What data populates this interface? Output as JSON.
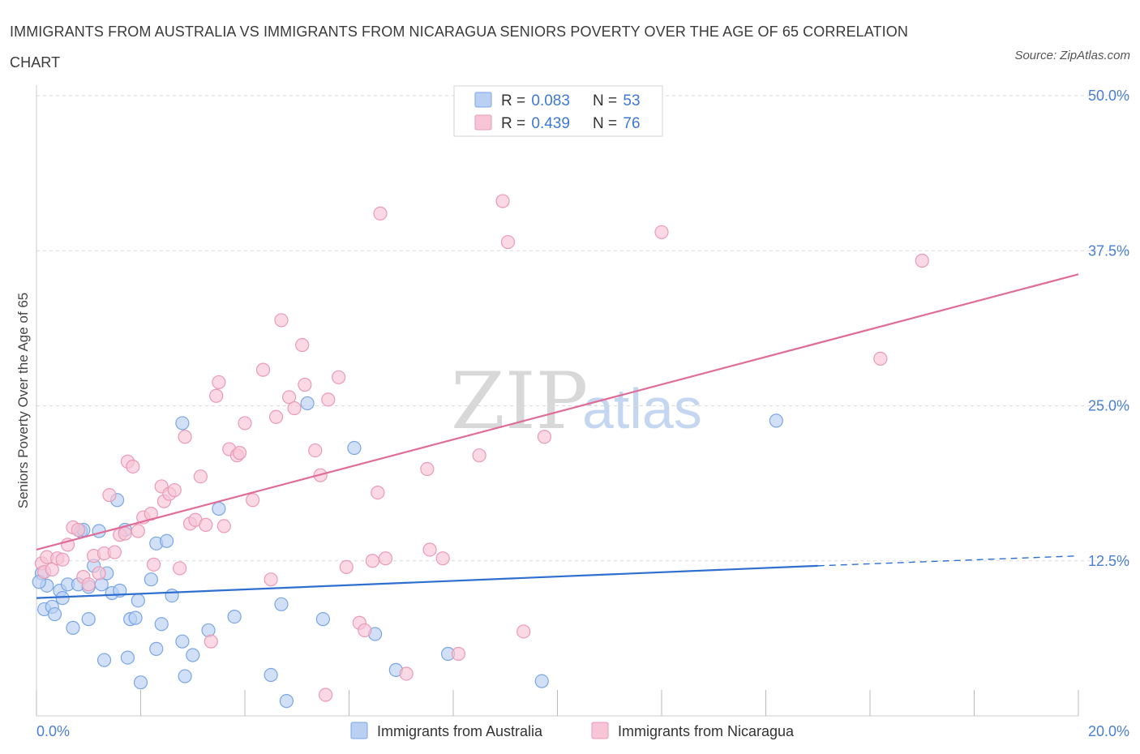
{
  "title": "IMMIGRANTS FROM AUSTRALIA VS IMMIGRANTS FROM NICARAGUA SENIORS POVERTY OVER THE AGE OF 65 CORRELATION CHART",
  "source": "Source: ZipAtlas.com",
  "watermark": {
    "zip": "ZIP",
    "atlas": "atlas"
  },
  "colors": {
    "blue_fill": "#b9d0f3",
    "blue_stroke": "#7aa6e6",
    "blue_line": "#2e6fd0",
    "pink_fill": "#f7c5d5",
    "pink_stroke": "#ea9ab5",
    "pink_line": "#e06c98",
    "tick_text": "#4a7fd4",
    "grid": "#d9d9d9"
  },
  "legend": {
    "rows": [
      {
        "r_label": "R = ",
        "r_value": "0.083",
        "n_label": "N = ",
        "n_value": "53"
      },
      {
        "r_label": "R = ",
        "r_value": "0.439",
        "n_label": "N = ",
        "n_value": "76"
      }
    ]
  },
  "chart_data": {
    "type": "scatter",
    "title": "IMMIGRANTS FROM AUSTRALIA VS IMMIGRANTS FROM NICARAGUA SENIORS POVERTY OVER THE AGE OF 65 CORRELATION CHART",
    "xlabel": "",
    "ylabel": "Seniors Poverty Over the Age of 65",
    "xlim": [
      0,
      20
    ],
    "ylim": [
      0,
      50
    ],
    "x_tick_labels": [
      "0.0%",
      "20.0%"
    ],
    "y_ticks": [
      12.5,
      25,
      37.5,
      50
    ],
    "y_tick_labels": [
      "12.5%",
      "25.0%",
      "37.5%",
      "50.0%"
    ],
    "grid": true,
    "legend_position": "top-center",
    "series": [
      {
        "name": "Immigrants from Australia",
        "R": 0.083,
        "N": 53,
        "trend": {
          "x0": 0,
          "y0": 9.5,
          "x1": 15,
          "y1": 12.1,
          "dash_x1": 20,
          "dash_y1": 12.9
        },
        "points": [
          [
            0.1,
            11.5
          ],
          [
            0.2,
            10.5
          ],
          [
            0.15,
            8.6
          ],
          [
            0.3,
            8.8
          ],
          [
            0.35,
            8.2
          ],
          [
            0.45,
            10.1
          ],
          [
            0.5,
            9.5
          ],
          [
            0.6,
            10.6
          ],
          [
            0.7,
            7.1
          ],
          [
            0.8,
            10.6
          ],
          [
            0.85,
            14.9
          ],
          [
            0.9,
            15.0
          ],
          [
            1.0,
            10.4
          ],
          [
            1.0,
            7.8
          ],
          [
            1.1,
            12.1
          ],
          [
            1.2,
            14.9
          ],
          [
            1.25,
            10.6
          ],
          [
            1.3,
            4.5
          ],
          [
            1.35,
            11.5
          ],
          [
            1.45,
            9.9
          ],
          [
            1.55,
            17.4
          ],
          [
            1.6,
            10.1
          ],
          [
            1.7,
            15.0
          ],
          [
            1.75,
            4.7
          ],
          [
            1.8,
            7.8
          ],
          [
            1.9,
            7.9
          ],
          [
            1.95,
            9.3
          ],
          [
            2.0,
            2.7
          ],
          [
            2.2,
            11.0
          ],
          [
            2.3,
            5.4
          ],
          [
            2.3,
            13.9
          ],
          [
            2.4,
            7.4
          ],
          [
            2.5,
            14.1
          ],
          [
            2.6,
            9.7
          ],
          [
            2.8,
            23.6
          ],
          [
            2.8,
            6.0
          ],
          [
            2.85,
            3.2
          ],
          [
            3.0,
            4.9
          ],
          [
            3.3,
            6.9
          ],
          [
            3.5,
            16.7
          ],
          [
            3.8,
            8.0
          ],
          [
            4.5,
            3.3
          ],
          [
            4.7,
            9.0
          ],
          [
            4.8,
            1.2
          ],
          [
            5.2,
            25.2
          ],
          [
            5.5,
            7.8
          ],
          [
            6.1,
            21.6
          ],
          [
            6.5,
            6.6
          ],
          [
            6.9,
            3.7
          ],
          [
            7.9,
            5.0
          ],
          [
            9.7,
            2.8
          ],
          [
            14.2,
            23.8
          ],
          [
            0.05,
            10.8
          ]
        ]
      },
      {
        "name": "Immigrants from Nicaragua",
        "R": 0.439,
        "N": 76,
        "trend": {
          "x0": 0,
          "y0": 13.4,
          "x1": 20,
          "y1": 35.6
        },
        "points": [
          [
            0.1,
            12.3
          ],
          [
            0.15,
            11.6
          ],
          [
            0.2,
            12.8
          ],
          [
            0.3,
            11.8
          ],
          [
            0.4,
            12.7
          ],
          [
            0.5,
            12.6
          ],
          [
            0.6,
            13.8
          ],
          [
            0.7,
            15.2
          ],
          [
            0.8,
            15.0
          ],
          [
            0.9,
            11.2
          ],
          [
            1.0,
            10.6
          ],
          [
            1.1,
            12.9
          ],
          [
            1.2,
            11.5
          ],
          [
            1.3,
            13.1
          ],
          [
            1.4,
            17.8
          ],
          [
            1.5,
            13.2
          ],
          [
            1.6,
            14.6
          ],
          [
            1.7,
            14.7
          ],
          [
            1.75,
            20.5
          ],
          [
            1.85,
            20.1
          ],
          [
            1.95,
            14.9
          ],
          [
            2.05,
            16.0
          ],
          [
            2.2,
            16.3
          ],
          [
            2.25,
            12.2
          ],
          [
            2.4,
            18.5
          ],
          [
            2.45,
            17.3
          ],
          [
            2.55,
            17.9
          ],
          [
            2.65,
            18.2
          ],
          [
            2.75,
            11.9
          ],
          [
            2.85,
            22.5
          ],
          [
            2.95,
            15.5
          ],
          [
            3.05,
            15.8
          ],
          [
            3.15,
            19.3
          ],
          [
            3.25,
            15.4
          ],
          [
            3.35,
            6.0
          ],
          [
            3.45,
            25.8
          ],
          [
            3.5,
            26.9
          ],
          [
            3.6,
            15.3
          ],
          [
            3.7,
            21.5
          ],
          [
            3.85,
            21.0
          ],
          [
            3.9,
            21.2
          ],
          [
            4.0,
            23.6
          ],
          [
            4.15,
            17.4
          ],
          [
            4.35,
            27.9
          ],
          [
            4.5,
            11.0
          ],
          [
            4.6,
            24.1
          ],
          [
            4.7,
            31.9
          ],
          [
            4.85,
            25.7
          ],
          [
            4.95,
            24.8
          ],
          [
            5.1,
            29.9
          ],
          [
            5.15,
            26.7
          ],
          [
            5.35,
            21.4
          ],
          [
            5.45,
            19.4
          ],
          [
            5.55,
            1.7
          ],
          [
            5.6,
            25.5
          ],
          [
            5.8,
            27.3
          ],
          [
            5.95,
            12.0
          ],
          [
            6.2,
            7.5
          ],
          [
            6.3,
            6.9
          ],
          [
            6.45,
            12.5
          ],
          [
            6.55,
            18.0
          ],
          [
            6.6,
            40.5
          ],
          [
            6.7,
            12.7
          ],
          [
            7.1,
            3.4
          ],
          [
            7.5,
            19.9
          ],
          [
            7.55,
            13.4
          ],
          [
            7.8,
            12.7
          ],
          [
            8.1,
            5.0
          ],
          [
            8.5,
            21.0
          ],
          [
            8.95,
            41.5
          ],
          [
            9.05,
            38.2
          ],
          [
            9.35,
            6.8
          ],
          [
            9.75,
            22.5
          ],
          [
            12.0,
            39.0
          ],
          [
            16.2,
            28.8
          ],
          [
            17.0,
            36.7
          ]
        ]
      }
    ]
  },
  "bottom_legend": [
    "Immigrants from Australia",
    "Immigrants from Nicaragua"
  ]
}
